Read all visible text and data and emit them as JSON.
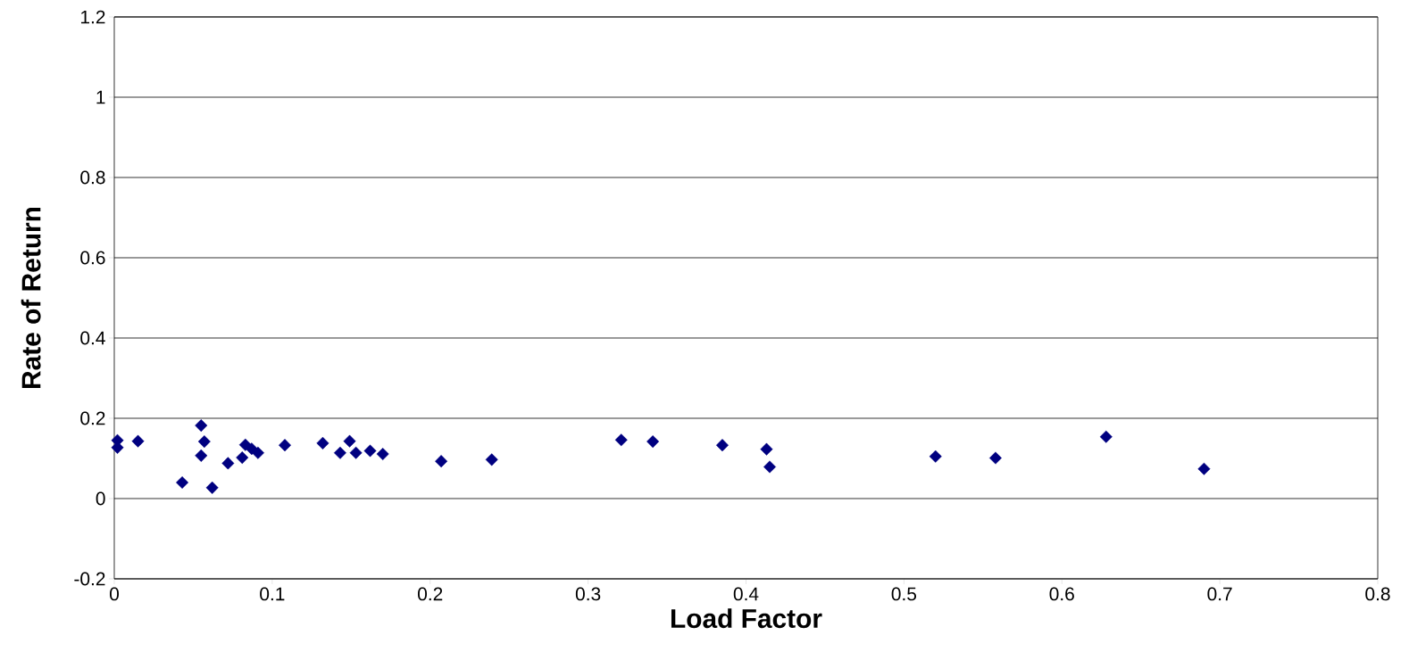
{
  "chart_data": {
    "type": "scatter",
    "xlabel": "Load Factor",
    "ylabel": "Rate of Return",
    "marker": "diamond",
    "grid": "y",
    "xlim": [
      0,
      0.8
    ],
    "ylim": [
      -0.2,
      1.2
    ],
    "xticks": [
      0,
      0.1,
      0.2,
      0.3,
      0.4,
      0.5,
      0.6,
      0.7,
      0.8
    ],
    "yticks": [
      -0.2,
      0,
      0.2,
      0.4,
      0.6,
      0.8,
      1,
      1.2
    ],
    "series": [
      {
        "color": "#000080",
        "x": [
          0.002,
          0.002,
          0.015,
          0.055,
          0.057,
          0.055,
          0.043,
          0.062,
          0.072,
          0.081,
          0.083,
          0.087,
          0.091,
          0.108,
          0.132,
          0.143,
          0.149,
          0.153,
          0.162,
          0.17,
          0.207,
          0.239,
          0.321,
          0.341,
          0.385,
          0.413,
          0.415,
          0.52,
          0.558,
          0.628,
          0.69
        ],
        "values": [
          0.145,
          0.127,
          0.143,
          0.182,
          0.142,
          0.107,
          0.04,
          0.027,
          0.088,
          0.102,
          0.134,
          0.124,
          0.114,
          0.133,
          0.138,
          0.114,
          0.143,
          0.114,
          0.119,
          0.111,
          0.093,
          0.097,
          0.146,
          0.142,
          0.133,
          0.123,
          0.079,
          0.105,
          0.101,
          0.154,
          0.074
        ]
      }
    ]
  }
}
